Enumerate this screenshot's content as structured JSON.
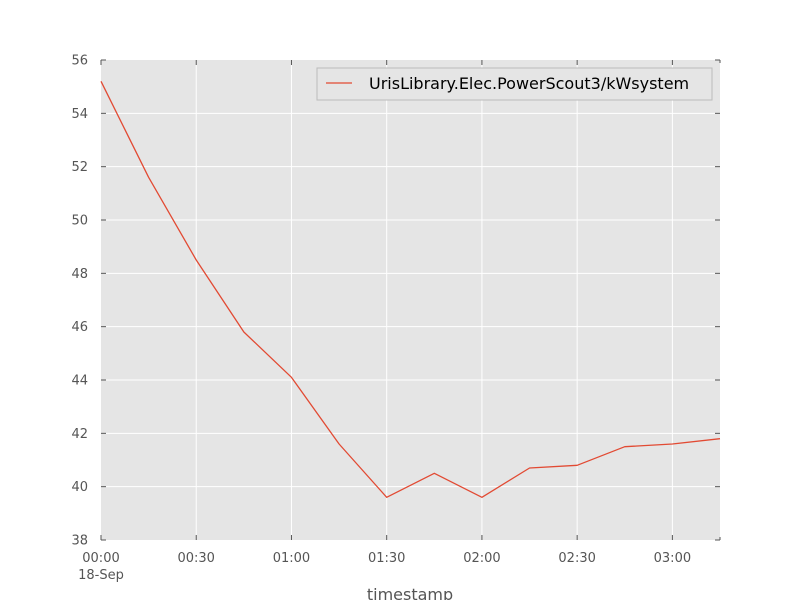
{
  "chart_data": {
    "type": "line",
    "xlabel": "timestamp",
    "ylabel": "",
    "ylim": [
      38,
      56
    ],
    "xlim": [
      "00:00",
      "03:15"
    ],
    "grid": true,
    "legend_position": "top-right",
    "background_color": "#e5e5e5",
    "grid_color": "#ffffff",
    "y_ticks": [
      38,
      40,
      42,
      44,
      46,
      48,
      50,
      52,
      54,
      56
    ],
    "x_ticks": [
      {
        "value": "00:00",
        "label": "00:00",
        "sublabel": "18-Sep"
      },
      {
        "value": "00:30",
        "label": "00:30",
        "sublabel": ""
      },
      {
        "value": "01:00",
        "label": "01:00",
        "sublabel": ""
      },
      {
        "value": "01:30",
        "label": "01:30",
        "sublabel": ""
      },
      {
        "value": "02:00",
        "label": "02:00",
        "sublabel": ""
      },
      {
        "value": "02:30",
        "label": "02:30",
        "sublabel": ""
      },
      {
        "value": "03:00",
        "label": "03:00",
        "sublabel": ""
      }
    ],
    "series": [
      {
        "name": "UrisLibrary.Elec.PowerScout3/kWsystem",
        "color": "#e24a33",
        "x": [
          "00:00",
          "00:15",
          "00:30",
          "00:45",
          "01:00",
          "01:15",
          "01:30",
          "01:45",
          "02:00",
          "02:15",
          "02:30",
          "02:45",
          "03:00",
          "03:15"
        ],
        "values": [
          55.2,
          51.6,
          48.5,
          45.8,
          44.1,
          41.6,
          39.6,
          40.5,
          39.6,
          40.7,
          40.8,
          41.5,
          41.6,
          41.8
        ]
      }
    ]
  }
}
